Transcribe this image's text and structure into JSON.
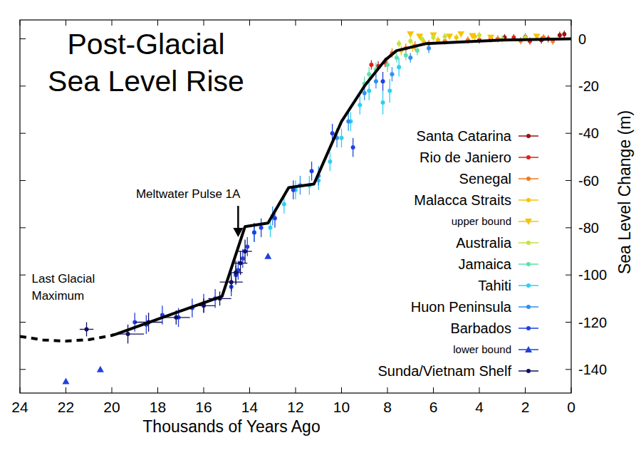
{
  "chart_data": {
    "type": "scatter",
    "title": "Post-Glacial Sea Level Rise",
    "x_label": "Thousands of Years Ago",
    "y_label": "Sea Level Change (m)",
    "xlim": [
      24,
      0
    ],
    "xticks": [
      24,
      22,
      20,
      18,
      16,
      14,
      12,
      10,
      8,
      6,
      4,
      2,
      0
    ],
    "ylim": [
      -150,
      8
    ],
    "yticks": [
      -140,
      -120,
      -100,
      -80,
      -60,
      -40,
      -20,
      0
    ],
    "grid": false,
    "legend": "right",
    "annotations": [
      {
        "text": [
          "Meltwater Pulse 1A"
        ],
        "x": 14.5,
        "y": -84
      },
      {
        "text": [
          "Last Glacial",
          "Maximum"
        ],
        "x": 22,
        "y": -128
      }
    ],
    "series": [
      {
        "name": "Santa Catarina",
        "color": "#9b1010",
        "marker": "circle",
        "x": [
          2.9,
          2.0,
          1.3,
          0.5,
          0.3
        ],
        "values": [
          0.5,
          0.8,
          -0.5,
          1.5,
          2
        ],
        "y_errors": [
          1.5,
          1.5,
          1.5,
          1.5,
          1.5
        ]
      },
      {
        "name": "Rio de Janiero",
        "color": "#e0201a",
        "marker": "circle",
        "x": [
          8.7,
          8.4,
          8.1,
          4.0,
          3.5,
          2.5,
          1.8,
          1.0
        ],
        "values": [
          -11,
          -11.5,
          -10,
          -0.5,
          0,
          0.5,
          -1,
          0
        ],
        "y_errors": [
          2,
          2,
          2,
          1.5,
          1.5,
          1.5,
          1.5,
          1.5
        ]
      },
      {
        "name": "Senegal",
        "color": "#f07820",
        "marker": "circle",
        "x": [
          7.8,
          7.2,
          6.8,
          6.2,
          5.5,
          4.5,
          3.2,
          2.2,
          1.2,
          0.8
        ],
        "values": [
          -6,
          -4,
          -3,
          -2,
          -1,
          -0.5,
          0,
          -0.8,
          0.5,
          -1
        ],
        "y_errors": [
          2,
          2,
          2,
          1.5,
          1.5,
          1.5,
          1.5,
          1.5,
          1.5,
          1.5
        ]
      },
      {
        "name": "Malacca Straits",
        "color": "#f5c400",
        "marker": "circle",
        "x": [
          7.4,
          6.9,
          6.4,
          5.8,
          5.0,
          4.2
        ],
        "values": [
          -5,
          -3.5,
          -1.5,
          -0.5,
          0.5,
          1
        ],
        "y_errors": [
          2,
          2,
          1.5,
          1.5,
          1.5,
          1.5
        ]
      },
      {
        "name": "upper bound",
        "color": "#f5c400",
        "marker": "triangle-down",
        "x": [
          7.0,
          6.6,
          6.0,
          5.3,
          4.8,
          4.3,
          3.5,
          1.5
        ],
        "values": [
          2,
          1,
          1.5,
          1,
          2,
          1.2,
          0.5,
          1
        ]
      },
      {
        "name": "Australia",
        "color": "#c4e23c",
        "marker": "circle",
        "x": [
          7.5,
          7.0,
          6.5,
          6.0,
          5.5,
          4.0,
          3.0,
          2.0
        ],
        "values": [
          -2,
          -1,
          0,
          0.5,
          1,
          1.5,
          0,
          0.5
        ],
        "y_errors": [
          1.5,
          1.5,
          1.5,
          1.5,
          1.5,
          1.5,
          1.5,
          1.5
        ]
      },
      {
        "name": "Jamaica",
        "color": "#5ee0a8",
        "marker": "circle",
        "x": [
          9.0,
          8.8,
          8.5,
          8.0,
          7.6,
          7.2,
          6.7
        ],
        "values": [
          -19,
          -15,
          -13,
          -11,
          -8,
          -7,
          -5
        ],
        "y_errors": [
          3,
          3,
          3,
          3,
          2,
          2,
          2
        ]
      },
      {
        "name": "Tahiti",
        "color": "#2cd0f0",
        "marker": "circle",
        "x": [
          13.8,
          13.1,
          12.5,
          12.0,
          11.4,
          11.0,
          10.5,
          10.0,
          9.6,
          9.2,
          8.8,
          8.2,
          7.9,
          7.5
        ],
        "values": [
          -82,
          -80,
          -70,
          -64,
          -62,
          -60,
          -52,
          -42,
          -35,
          -28,
          -22,
          -27,
          -22,
          -12
        ],
        "y_errors": [
          4,
          4,
          4,
          4,
          4,
          4,
          4,
          4,
          4,
          4,
          4,
          5,
          5,
          4
        ]
      },
      {
        "name": "Huon Peninsula",
        "color": "#3090f0",
        "marker": "circle",
        "x": [
          13.0,
          11.8,
          11.0,
          10.2,
          9.7,
          9.0,
          8.5,
          7.8,
          7.0,
          6.2
        ],
        "values": [
          -75,
          -62,
          -58,
          -42,
          -35,
          -23,
          -18,
          -15,
          -8,
          -4
        ],
        "y_errors": [
          4,
          4,
          4,
          4,
          4,
          3,
          3,
          3,
          2,
          2
        ]
      },
      {
        "name": "Barbados",
        "color": "#2040e0",
        "marker": "circle",
        "x": [
          19.0,
          18.5,
          17.8,
          17.1,
          16.5,
          16.0,
          15.5,
          14.8,
          14.6,
          14.5,
          14.3,
          14.1,
          13.8,
          13.5,
          12.9,
          12.1,
          11.3,
          10.4,
          9.5,
          8.2
        ],
        "values": [
          -120,
          -121,
          -117,
          -118,
          -114,
          -112,
          -110,
          -105,
          -100,
          -98,
          -93,
          -88,
          -82,
          -80,
          -76,
          -64,
          -56,
          -40,
          -46,
          -18
        ],
        "y_errors": [
          4,
          4,
          4,
          4,
          4,
          4,
          4,
          4,
          4,
          4,
          4,
          4,
          4,
          4,
          4,
          4,
          4,
          4,
          4,
          4
        ]
      },
      {
        "name": "lower bound",
        "color": "#2040e0",
        "marker": "triangle-up",
        "x": [
          22,
          20.5,
          13.2
        ],
        "values": [
          -145,
          -140,
          -92
        ]
      },
      {
        "name": "Sunda/Vietnam Shelf",
        "color": "#101060",
        "marker": "circle",
        "x": [
          21.1,
          19.3,
          18.4,
          17.2,
          16.0,
          15.3,
          14.8,
          14.6,
          14.4,
          14.2
        ],
        "values": [
          -123,
          -125,
          -120,
          -118,
          -113,
          -110,
          -103,
          -99,
          -95,
          -90
        ],
        "y_errors": [
          3,
          4,
          4,
          3,
          3,
          3,
          4,
          5,
          5,
          5
        ],
        "x_errors": [
          0.3,
          0.7,
          0.6,
          0.6,
          0.5,
          0.5,
          0.5,
          0.3,
          0.3,
          0.3
        ]
      },
      {
        "type": "line",
        "color": "#000000",
        "marker": "none",
        "line_style": "dashed",
        "x": [
          24,
          23,
          22,
          21,
          20,
          19.8
        ],
        "values": [
          -126,
          -127.5,
          -128,
          -127.4,
          -125.6,
          -125
        ]
      },
      {
        "type": "line",
        "color": "#000000",
        "marker": "none",
        "line_style": "solid",
        "x": [
          19.8,
          15.2,
          14.2,
          13.2,
          12.3,
          11.2,
          10,
          9,
          8.1,
          7.6,
          6.3,
          3,
          0
        ],
        "values": [
          -125,
          -109,
          -79.5,
          -78,
          -63,
          -61.5,
          -35,
          -20,
          -9,
          -5,
          -2,
          -0.5,
          0
        ]
      }
    ]
  }
}
